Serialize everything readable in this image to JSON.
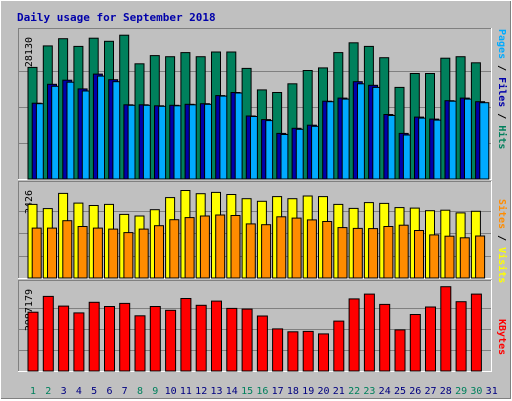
{
  "title": "Daily usage for September 2018",
  "colors": {
    "title": "#0000aa",
    "panel_bg": "#c0c0c0",
    "pages": "#00aaff",
    "files": "#0000aa",
    "hits": "#00805c",
    "sites": "#ff8c00",
    "visits": "#ffff00",
    "kbytes": "#ff0000",
    "weekend_label": "#00805c",
    "weekday_label": "#000080"
  },
  "right_labels": {
    "top": [
      "Pages",
      "Files",
      "Hits"
    ],
    "mid": [
      "Sites",
      "Visits"
    ],
    "bot": [
      "KBytes"
    ]
  },
  "chart_data": [
    {
      "type": "bar",
      "panel": "hits-files-pages",
      "y_max_label": "28130",
      "ylim": [
        0,
        28130
      ],
      "categories": [
        "1",
        "2",
        "3",
        "4",
        "5",
        "6",
        "7",
        "8",
        "9",
        "10",
        "11",
        "12",
        "13",
        "14",
        "15",
        "16",
        "17",
        "18",
        "19",
        "20",
        "21",
        "22",
        "23",
        "24",
        "25",
        "26",
        "27",
        "28",
        "29",
        "30"
      ],
      "series": [
        {
          "name": "Hits",
          "values": [
            21800,
            26000,
            27400,
            25900,
            27500,
            26900,
            28100,
            22500,
            24100,
            23900,
            24700,
            23900,
            24800,
            24800,
            21600,
            17400,
            16900,
            18600,
            21200,
            21700,
            24700,
            26600,
            25900,
            23700,
            17900,
            20600,
            20600,
            23600,
            23900,
            22700
          ]
        },
        {
          "name": "Files",
          "values": [
            14800,
            18500,
            19300,
            17600,
            20500,
            19400,
            14500,
            14500,
            14300,
            14400,
            14600,
            14700,
            16300,
            16900,
            12300,
            11600,
            8900,
            9900,
            10500,
            15200,
            15800,
            19000,
            18300,
            12600,
            8900,
            12100,
            11700,
            15300,
            15800,
            15100
          ]
        },
        {
          "name": "Pages",
          "values": [
            14700,
            18100,
            18900,
            17200,
            20100,
            19000,
            14400,
            14400,
            14200,
            14300,
            14500,
            14600,
            16200,
            16800,
            12200,
            11400,
            8700,
            9700,
            10300,
            15100,
            15600,
            18600,
            17900,
            12400,
            8600,
            11900,
            11500,
            15200,
            15600,
            14900
          ]
        }
      ],
      "extra_label": "31"
    },
    {
      "type": "bar",
      "panel": "visits-sites",
      "y_max_label": "3426",
      "ylim": [
        0,
        3426
      ],
      "categories": [
        "1",
        "2",
        "3",
        "4",
        "5",
        "6",
        "7",
        "8",
        "9",
        "10",
        "11",
        "12",
        "13",
        "14",
        "15",
        "16",
        "17",
        "18",
        "19",
        "20",
        "21",
        "22",
        "23",
        "24",
        "25",
        "26",
        "27",
        "28",
        "29",
        "30"
      ],
      "series": [
        {
          "name": "Visits",
          "values": [
            2800,
            2640,
            3220,
            2850,
            2760,
            2800,
            2420,
            2360,
            2600,
            3060,
            3330,
            3210,
            3260,
            3180,
            3020,
            2920,
            3100,
            3020,
            3120,
            3100,
            2800,
            2650,
            2870,
            2840,
            2680,
            2660,
            2560,
            2580,
            2480,
            2540
          ]
        },
        {
          "name": "Sites",
          "values": [
            1900,
            1900,
            2180,
            1960,
            1900,
            1860,
            1730,
            1860,
            1990,
            2220,
            2300,
            2360,
            2400,
            2380,
            2060,
            2030,
            2330,
            2280,
            2210,
            2150,
            1920,
            1890,
            1880,
            1960,
            2010,
            1810,
            1640,
            1590,
            1530,
            1600
          ]
        }
      ],
      "extra_label": "31"
    },
    {
      "type": "bar",
      "panel": "kbytes",
      "y_max_label": "3987179",
      "ylim": [
        0,
        3987179
      ],
      "categories": [
        "1",
        "2",
        "3",
        "4",
        "5",
        "6",
        "7",
        "8",
        "9",
        "10",
        "11",
        "12",
        "13",
        "14",
        "15",
        "16",
        "17",
        "18",
        "19",
        "20",
        "21",
        "22",
        "23",
        "24",
        "25",
        "26",
        "27",
        "28",
        "29",
        "30"
      ],
      "series": [
        {
          "name": "KBytes",
          "values": [
            2790000,
            3540000,
            3080000,
            2760000,
            3260000,
            3060000,
            3210000,
            2620000,
            3060000,
            2880000,
            3440000,
            3120000,
            3320000,
            2970000,
            2940000,
            2610000,
            2000000,
            1860000,
            1880000,
            1760000,
            2370000,
            3420000,
            3650000,
            3160000,
            1950000,
            2680000,
            3040000,
            4000000,
            3290000,
            3650000
          ]
        }
      ],
      "extra_label": "31"
    }
  ],
  "weekend_days": [
    1,
    2,
    8,
    9,
    15,
    16,
    22,
    23,
    29,
    30
  ]
}
